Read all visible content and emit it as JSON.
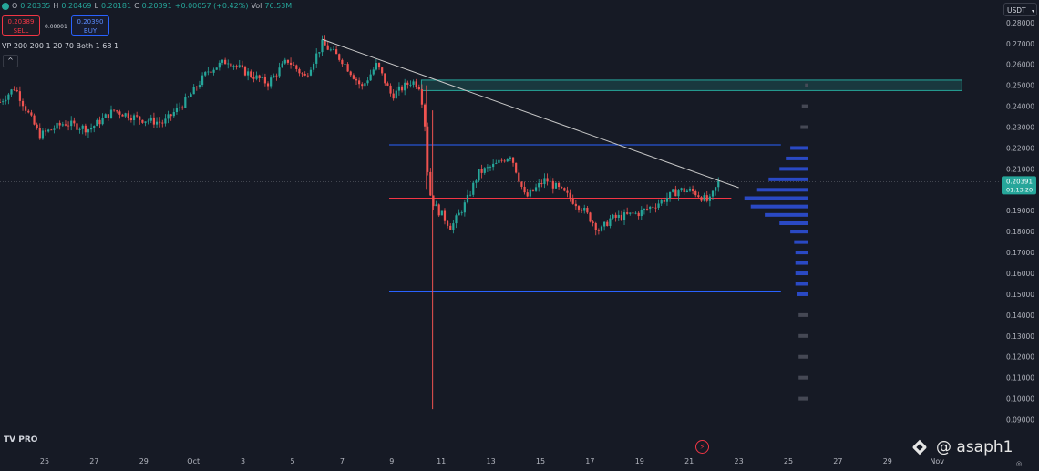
{
  "legend": {
    "o_label": "O",
    "o_value": "0.20335",
    "h_label": "H",
    "h_value": "0.20469",
    "l_label": "L",
    "l_value": "0.20181",
    "c_label": "C",
    "c_value": "0.20391",
    "change": "+0.00057 (+0.42%)",
    "vol_label": "Vol",
    "vol_value": "76.53M"
  },
  "trade": {
    "sell_price": "0.20389",
    "sell_label": "SELL",
    "spread": "0.00001",
    "buy_price": "0.20390",
    "buy_label": "BUY"
  },
  "indicator_label": "VP 200 200 1 20 70 Both 1 68 1",
  "collapse_icon": "^",
  "currency": "USDT",
  "branding": {
    "logo": "TV PRO",
    "watermark": "@ asaph1"
  },
  "colors": {
    "up": "#26a69a",
    "down": "#ef5350",
    "trendline": "#c8c8c8",
    "zone": "#26a69a",
    "level_blue": "#2962ff",
    "level_red": "#f23645",
    "vp": "#2c4fd6"
  },
  "chart_data": {
    "type": "candlestick",
    "instrument_quote": "USDT",
    "y_ticks": [
      "0.28000",
      "0.27000",
      "0.26000",
      "0.25000",
      "0.24000",
      "0.23000",
      "0.22000",
      "0.21000",
      "0.19000",
      "0.18000",
      "0.17000",
      "0.16000",
      "0.15000",
      "0.14000",
      "0.13000",
      "0.12000",
      "0.11000",
      "0.10000",
      "0.09000"
    ],
    "ylim": [
      0.085,
      0.283
    ],
    "x_ticks": [
      "25",
      "27",
      "29",
      "Oct",
      "3",
      "5",
      "7",
      "9",
      "11",
      "13",
      "15",
      "17",
      "19",
      "21",
      "23",
      "25",
      "27",
      "29",
      "Nov"
    ],
    "last_price": "0.20391",
    "countdown": "01:13:20",
    "close_path": [
      {
        "d": 0,
        "p": 0.242
      },
      {
        "d": 0.6,
        "p": 0.249
      },
      {
        "d": 1.6,
        "p": 0.226
      },
      {
        "d": 2.6,
        "p": 0.232
      },
      {
        "d": 3.6,
        "p": 0.229
      },
      {
        "d": 4.6,
        "p": 0.238
      },
      {
        "d": 5.6,
        "p": 0.234
      },
      {
        "d": 6.6,
        "p": 0.232
      },
      {
        "d": 7.6,
        "p": 0.244
      },
      {
        "d": 8.4,
        "p": 0.257
      },
      {
        "d": 9.2,
        "p": 0.262
      },
      {
        "d": 9.8,
        "p": 0.257
      },
      {
        "d": 10.8,
        "p": 0.251
      },
      {
        "d": 11.6,
        "p": 0.262
      },
      {
        "d": 12.3,
        "p": 0.254
      },
      {
        "d": 13.0,
        "p": 0.27
      },
      {
        "d": 13.8,
        "p": 0.262
      },
      {
        "d": 14.6,
        "p": 0.249
      },
      {
        "d": 15.2,
        "p": 0.26
      },
      {
        "d": 15.8,
        "p": 0.245
      },
      {
        "d": 16.6,
        "p": 0.252
      },
      {
        "d": 16.9,
        "p": 0.25
      },
      {
        "d": 17.1,
        "p": 0.238
      },
      {
        "d": 17.3,
        "p": 0.2
      },
      {
        "d": 17.5,
        "p": 0.193
      },
      {
        "d": 18.2,
        "p": 0.182
      },
      {
        "d": 18.8,
        "p": 0.194
      },
      {
        "d": 19.3,
        "p": 0.208
      },
      {
        "d": 20.0,
        "p": 0.212
      },
      {
        "d": 20.6,
        "p": 0.217
      },
      {
        "d": 21.2,
        "p": 0.196
      },
      {
        "d": 22.0,
        "p": 0.205
      },
      {
        "d": 22.8,
        "p": 0.198
      },
      {
        "d": 23.5,
        "p": 0.191
      },
      {
        "d": 24.2,
        "p": 0.18
      },
      {
        "d": 24.6,
        "p": 0.186
      },
      {
        "d": 25.8,
        "p": 0.189
      },
      {
        "d": 26.6,
        "p": 0.194
      },
      {
        "d": 27.4,
        "p": 0.2
      },
      {
        "d": 28.0,
        "p": 0.199
      },
      {
        "d": 28.6,
        "p": 0.194
      },
      {
        "d": 29.0,
        "p": 0.204
      }
    ],
    "wicks": [
      {
        "d": 17.45,
        "high": 0.238,
        "low": 0.095
      },
      {
        "d": 17.2,
        "high": 0.25,
        "low": 0.2
      }
    ],
    "trendline": [
      {
        "d": 13.0,
        "p": 0.272
      },
      {
        "d": 29.8,
        "p": 0.201
      }
    ],
    "zone": {
      "from_d": 17.0,
      "to_d": 38.8,
      "top": 0.2525,
      "bottom": 0.2475
    },
    "levels": [
      {
        "name": "upper-level",
        "p": 0.2215,
        "from_d": 15.7,
        "to_d": 31.5,
        "color": "#2962ff"
      },
      {
        "name": "mid-level",
        "p": 0.196,
        "from_d": 15.7,
        "to_d": 29.5,
        "color": "#f23645"
      },
      {
        "name": "lower-level",
        "p": 0.1515,
        "from_d": 15.7,
        "to_d": 31.5,
        "color": "#2962ff"
      }
    ],
    "volume_profile": {
      "base_d": 32.6,
      "rows": [
        {
          "p": 0.25,
          "w": 0.05
        },
        {
          "p": 0.24,
          "w": 0.1
        },
        {
          "p": 0.23,
          "w": 0.12
        },
        {
          "p": 0.22,
          "w": 0.28
        },
        {
          "p": 0.215,
          "w": 0.35
        },
        {
          "p": 0.21,
          "w": 0.45
        },
        {
          "p": 0.205,
          "w": 0.62
        },
        {
          "p": 0.2,
          "w": 0.8
        },
        {
          "p": 0.196,
          "w": 1.0
        },
        {
          "p": 0.192,
          "w": 0.9
        },
        {
          "p": 0.188,
          "w": 0.68
        },
        {
          "p": 0.184,
          "w": 0.45
        },
        {
          "p": 0.18,
          "w": 0.28
        },
        {
          "p": 0.175,
          "w": 0.22
        },
        {
          "p": 0.17,
          "w": 0.2
        },
        {
          "p": 0.165,
          "w": 0.2
        },
        {
          "p": 0.16,
          "w": 0.2
        },
        {
          "p": 0.155,
          "w": 0.2
        },
        {
          "p": 0.15,
          "w": 0.18
        },
        {
          "p": 0.14,
          "w": 0.15
        },
        {
          "p": 0.13,
          "w": 0.15
        },
        {
          "p": 0.12,
          "w": 0.15
        },
        {
          "p": 0.11,
          "w": 0.15
        },
        {
          "p": 0.1,
          "w": 0.15
        }
      ]
    }
  }
}
